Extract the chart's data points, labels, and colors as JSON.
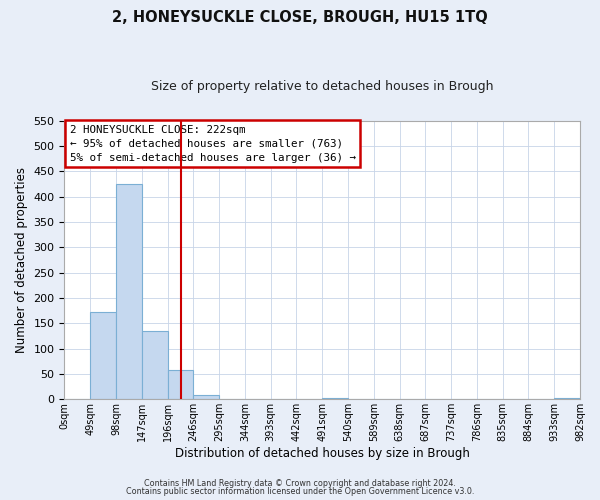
{
  "title": "2, HONEYSUCKLE CLOSE, BROUGH, HU15 1TQ",
  "subtitle": "Size of property relative to detached houses in Brough",
  "xlabel": "Distribution of detached houses by size in Brough",
  "ylabel": "Number of detached properties",
  "bin_edges": [
    0,
    49,
    98,
    147,
    196,
    245,
    294,
    343,
    392,
    441,
    490,
    539,
    588,
    637,
    686,
    735,
    784,
    833,
    882,
    931,
    980
  ],
  "bin_labels": [
    "0sqm",
    "49sqm",
    "98sqm",
    "147sqm",
    "196sqm",
    "246sqm",
    "295sqm",
    "344sqm",
    "393sqm",
    "442sqm",
    "491sqm",
    "540sqm",
    "589sqm",
    "638sqm",
    "687sqm",
    "737sqm",
    "786sqm",
    "835sqm",
    "884sqm",
    "933sqm",
    "982sqm"
  ],
  "counts": [
    0,
    172,
    424,
    135,
    57,
    8,
    0,
    0,
    0,
    0,
    2,
    0,
    0,
    0,
    0,
    0,
    0,
    0,
    0,
    2
  ],
  "bar_color": "#c5d8ef",
  "bar_edge_color": "#7bafd4",
  "vline_x": 222,
  "vline_color": "#cc0000",
  "ylim": [
    0,
    550
  ],
  "yticks": [
    0,
    50,
    100,
    150,
    200,
    250,
    300,
    350,
    400,
    450,
    500,
    550
  ],
  "annotation_title": "2 HONEYSUCKLE CLOSE: 222sqm",
  "annotation_line1": "← 95% of detached houses are smaller (763)",
  "annotation_line2": "5% of semi-detached houses are larger (36) →",
  "footer1": "Contains HM Land Registry data © Crown copyright and database right 2024.",
  "footer2": "Contains public sector information licensed under the Open Government Licence v3.0.",
  "bg_color": "#e8eef8",
  "plot_bg_color": "#ffffff",
  "grid_color": "#c8d4e8"
}
